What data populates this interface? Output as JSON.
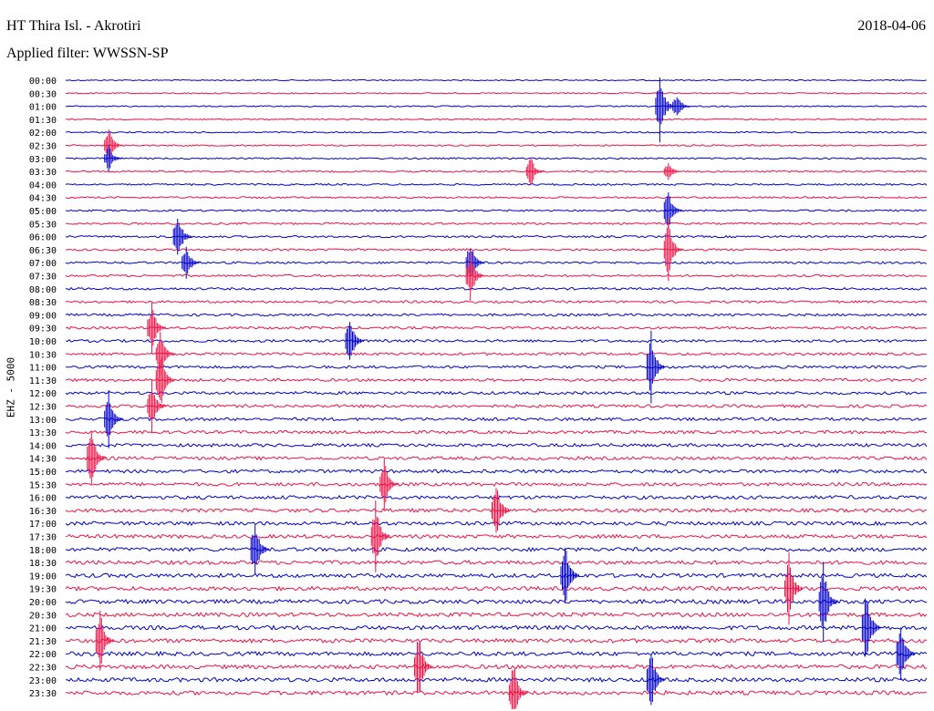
{
  "header": {
    "station": "HT Thira Isl. - Akrotiri",
    "date": "2018-04-06",
    "filter": "Applied filter: WWSSN-SP",
    "channel": "EHZ - 5000"
  },
  "chart_data": {
    "type": "line",
    "title": "HT Thira Isl. - Akrotiri",
    "subtitle": "Applied filter: WWSSN-SP",
    "ylabel": "EHZ - 5000",
    "date": "2018-04-06",
    "trace_labels": [
      "00:00",
      "00:30",
      "01:00",
      "01:30",
      "02:00",
      "02:30",
      "03:00",
      "03:30",
      "04:00",
      "04:30",
      "05:00",
      "05:30",
      "06:00",
      "06:30",
      "07:00",
      "07:30",
      "08:00",
      "08:30",
      "09:00",
      "09:30",
      "10:00",
      "10:30",
      "11:00",
      "11:30",
      "12:00",
      "12:30",
      "13:00",
      "13:30",
      "14:00",
      "14:30",
      "15:00",
      "15:30",
      "16:00",
      "16:30",
      "17:00",
      "17:30",
      "18:00",
      "18:30",
      "19:00",
      "19:30",
      "20:00",
      "20:30",
      "21:00",
      "21:30",
      "22:00",
      "22:30",
      "23:00",
      "23:30"
    ],
    "trace_colors": [
      "#0000cc",
      "#ee1144"
    ],
    "trace_duration_minutes": 30,
    "events": [
      {
        "trace": "01:00",
        "t": 0.69,
        "amp": 40
      },
      {
        "trace": "01:00",
        "t": 0.71,
        "amp": 15
      },
      {
        "trace": "02:30",
        "t": 0.05,
        "amp": 20
      },
      {
        "trace": "03:00",
        "t": 0.05,
        "amp": 15
      },
      {
        "trace": "03:30",
        "t": 0.54,
        "amp": 18
      },
      {
        "trace": "03:30",
        "t": 0.7,
        "amp": 12
      },
      {
        "trace": "05:00",
        "t": 0.7,
        "amp": 25
      },
      {
        "trace": "06:00",
        "t": 0.13,
        "amp": 30
      },
      {
        "trace": "06:30",
        "t": 0.7,
        "amp": 35
      },
      {
        "trace": "07:00",
        "t": 0.47,
        "amp": 25
      },
      {
        "trace": "07:00",
        "t": 0.14,
        "amp": 20
      },
      {
        "trace": "07:30",
        "t": 0.47,
        "amp": 28
      },
      {
        "trace": "09:30",
        "t": 0.1,
        "amp": 30
      },
      {
        "trace": "10:00",
        "t": 0.33,
        "amp": 30
      },
      {
        "trace": "10:30",
        "t": 0.11,
        "amp": 30
      },
      {
        "trace": "11:00",
        "t": 0.68,
        "amp": 40
      },
      {
        "trace": "11:30",
        "t": 0.11,
        "amp": 35
      },
      {
        "trace": "12:30",
        "t": 0.1,
        "amp": 30
      },
      {
        "trace": "13:00",
        "t": 0.05,
        "amp": 35
      },
      {
        "trace": "14:30",
        "t": 0.03,
        "amp": 40
      },
      {
        "trace": "15:30",
        "t": 0.37,
        "amp": 30
      },
      {
        "trace": "16:30",
        "t": 0.5,
        "amp": 35
      },
      {
        "trace": "17:30",
        "t": 0.36,
        "amp": 40
      },
      {
        "trace": "18:00",
        "t": 0.22,
        "amp": 35
      },
      {
        "trace": "19:00",
        "t": 0.58,
        "amp": 40
      },
      {
        "trace": "19:30",
        "t": 0.84,
        "amp": 40
      },
      {
        "trace": "20:00",
        "t": 0.88,
        "amp": 45
      },
      {
        "trace": "21:00",
        "t": 0.93,
        "amp": 45
      },
      {
        "trace": "21:30",
        "t": 0.04,
        "amp": 35
      },
      {
        "trace": "22:00",
        "t": 0.97,
        "amp": 40
      },
      {
        "trace": "22:30",
        "t": 0.41,
        "amp": 40
      },
      {
        "trace": "23:00",
        "t": 0.68,
        "amp": 35
      },
      {
        "trace": "23:30",
        "t": 0.52,
        "amp": 40
      }
    ]
  }
}
